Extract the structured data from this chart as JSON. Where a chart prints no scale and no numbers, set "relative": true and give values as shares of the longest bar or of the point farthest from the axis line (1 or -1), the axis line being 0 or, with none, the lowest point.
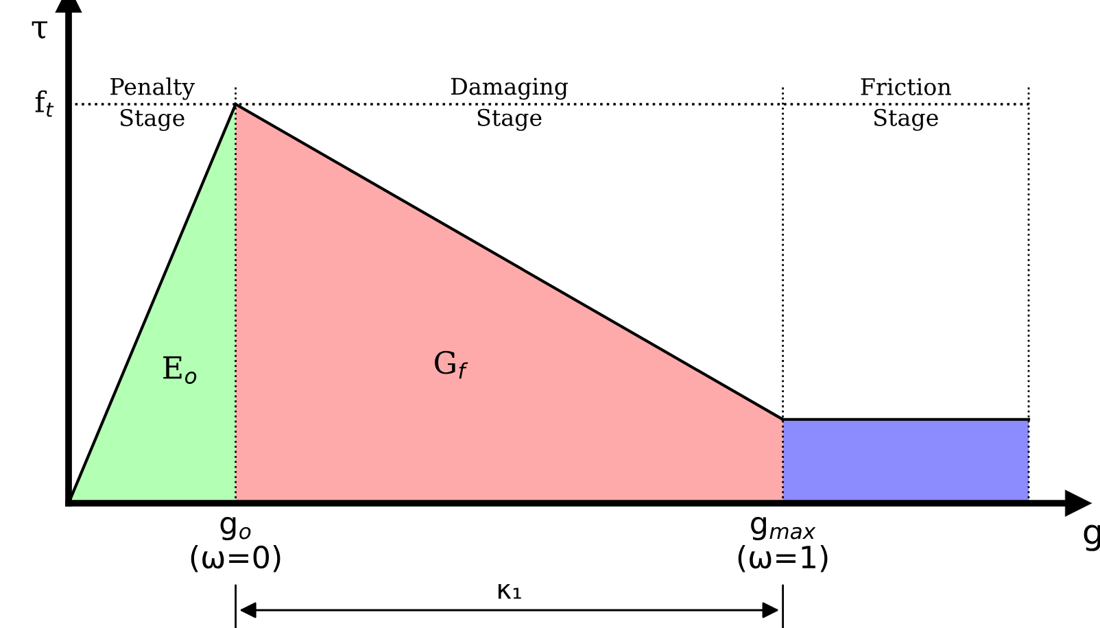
{
  "chart_data": {
    "type": "area",
    "relative": true,
    "xlabel": "g",
    "ylabel": "τ",
    "xlim": [
      0,
      1.04
    ],
    "xticks": [
      {
        "value": 0.174,
        "label": "g$_{o}$\n(ω=0)"
      },
      {
        "value": 0.744,
        "label": "g$_{max}$\n(ω=1)"
      }
    ],
    "tick_labels": "x",
    "grid": false,
    "legend": false,
    "series": [
      {
        "name": "E$_{o}$",
        "color": "#b3ffb3",
        "x": [
          0,
          0.174
        ],
        "values": [
          0,
          1
        ]
      },
      {
        "name": "G$_{f}$",
        "color": "#ffaaaa",
        "x": [
          0.174,
          0.744
        ],
        "values": [
          1,
          0.21
        ]
      },
      {
        "color": "#8c8cff",
        "x": [
          0.744,
          1.0
        ],
        "values": [
          0.21,
          0.21
        ]
      }
    ],
    "ref_lines": [
      {
        "axis": "y",
        "value": 1,
        "label": "f$_{t}$",
        "line_style": "dotted",
        "color": "#000000"
      },
      {
        "axis": "x",
        "value": 0.174,
        "line_style": "dotted",
        "color": "#000000"
      },
      {
        "axis": "x",
        "value": 0.744,
        "line_style": "dotted",
        "color": "#000000"
      },
      {
        "axis": "x",
        "value": 1.0,
        "line_style": "dotted",
        "color": "#000000"
      }
    ],
    "annotations": [
      "Penalty\nStage",
      "Damaging\nStage",
      "Friction\nStage",
      "κ₁"
    ]
  }
}
